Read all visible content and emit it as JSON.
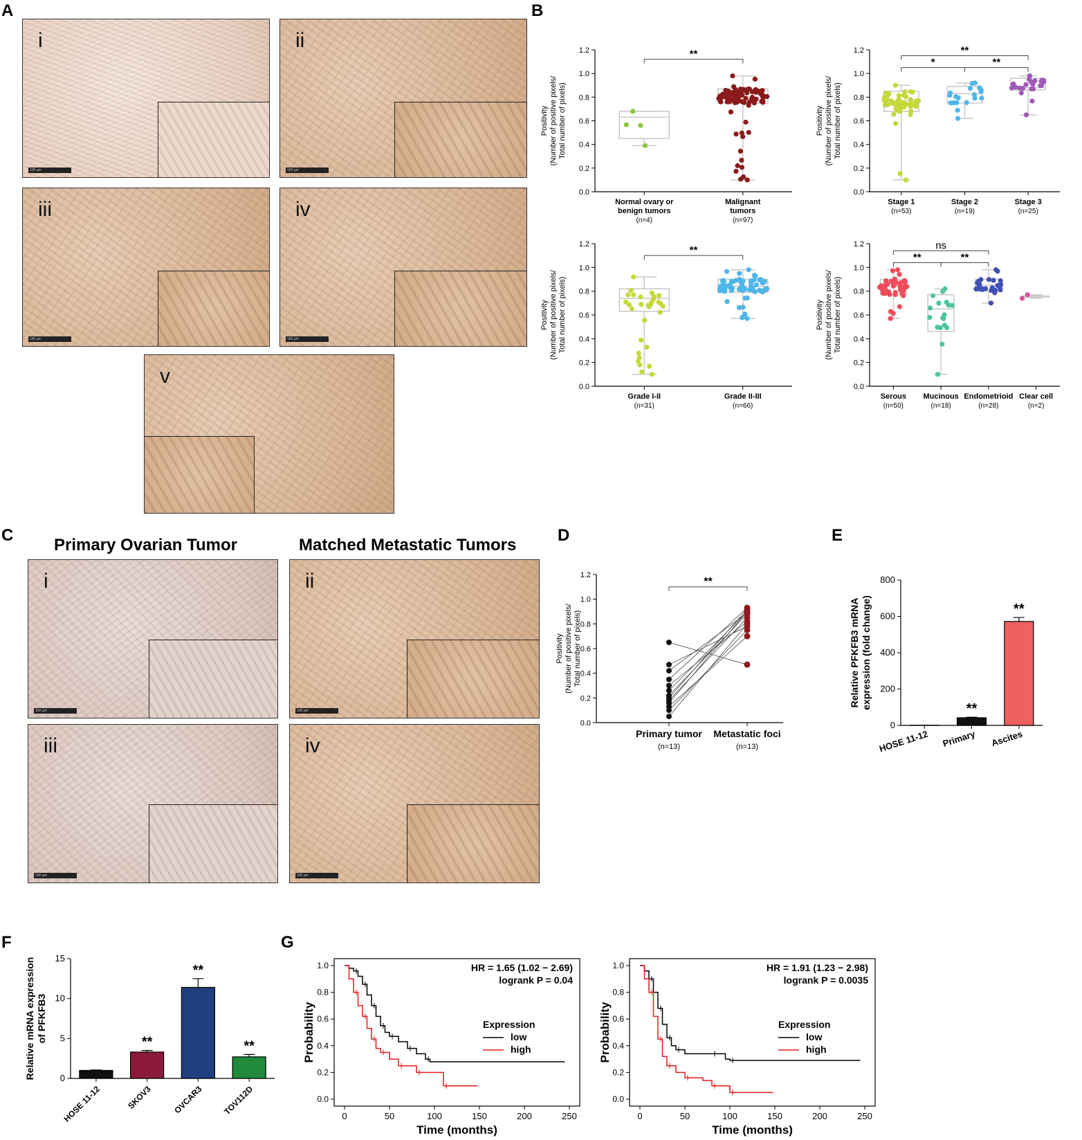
{
  "panels": {
    "A": {
      "letter": "A",
      "images": [
        {
          "roman": "i",
          "scale": "100 µm"
        },
        {
          "roman": "ii",
          "scale": "100 µm"
        },
        {
          "roman": "iii",
          "scale": "100 µm"
        },
        {
          "roman": "iv",
          "scale": "100 µm"
        },
        {
          "roman": "v",
          "scale": ""
        }
      ]
    },
    "B": {
      "letter": "B"
    },
    "C": {
      "letter": "C",
      "left_title": "Primary Ovarian Tumor",
      "right_title": "Matched Metastatic Tumors",
      "images": [
        {
          "roman": "i",
          "scale": "100 µm"
        },
        {
          "roman": "ii",
          "scale": "100 µm"
        },
        {
          "roman": "iii",
          "scale": "100 µm"
        },
        {
          "roman": "iv",
          "scale": "100 µm"
        }
      ]
    },
    "D": {
      "letter": "D"
    },
    "E": {
      "letter": "E"
    },
    "F": {
      "letter": "F"
    },
    "G": {
      "letter": "G"
    }
  },
  "colors": {
    "normal": "#8cc63f",
    "malignant": "#8b1a1a",
    "stage1": "#c5d83a",
    "stage2": "#4fb6e8",
    "stage3": "#a05ab8",
    "grade12": "#c5d83a",
    "grade23": "#4fb6e8",
    "serous": "#ee4c5a",
    "mucinous": "#4fc3a0",
    "endometrioid": "#3f51b5",
    "clearcell": "#d9509e",
    "primary_dot": "#111111",
    "meta_dot": "#8b1a1a",
    "ascites_bar": "#f06060",
    "skov3": "#8b1a3a",
    "ovcar3": "#1f3f7f",
    "tov112d": "#1f8a3a",
    "hose": "#111111",
    "km_low": "#000000",
    "km_high": "#e31a1c"
  },
  "chart_data": [
    {
      "id": "B1",
      "type": "scatter",
      "ylabel": "Positivity\n(Number of positive pixels/\nTotal number of pixels)",
      "ylim": [
        0,
        1.2
      ],
      "yticks": [
        "0.0",
        "0.2",
        "0.4",
        "0.6",
        "0.8",
        "1.0",
        "1.2"
      ],
      "groups": [
        {
          "label": "Normal ovary or\nbenign tumors",
          "n": "(n=4)",
          "color_key": "normal",
          "median": 0.63,
          "q1": 0.45,
          "q3": 0.68,
          "min": 0.39,
          "max": 0.68,
          "n_points": 4
        },
        {
          "label": "Malignant\ntumors",
          "n": "(n=97)",
          "color_key": "malignant",
          "median": 0.8,
          "q1": 0.75,
          "q3": 0.87,
          "min": 0.1,
          "max": 0.98,
          "n_points": 97
        }
      ],
      "significance": [
        {
          "from": 0,
          "to": 1,
          "label": "**",
          "y": 1.12
        }
      ]
    },
    {
      "id": "B2",
      "type": "scatter",
      "ylabel": "Positivity\n(Number of positive pixels/\nTotal number of pixels)",
      "ylim": [
        0,
        1.2
      ],
      "yticks": [
        "0.0",
        "0.2",
        "0.4",
        "0.6",
        "0.8",
        "1.0",
        "1.2"
      ],
      "groups": [
        {
          "label": "Stage 1",
          "n": "(n=53)",
          "color_key": "stage1",
          "median": 0.77,
          "q1": 0.68,
          "q3": 0.85,
          "min": 0.1,
          "max": 0.9,
          "n_points": 53
        },
        {
          "label": "Stage 2",
          "n": "(n=19)",
          "color_key": "stage2",
          "median": 0.83,
          "q1": 0.75,
          "q3": 0.89,
          "min": 0.62,
          "max": 0.92,
          "n_points": 19
        },
        {
          "label": "Stage 3",
          "n": "(n=25)",
          "color_key": "stage3",
          "median": 0.88,
          "q1": 0.86,
          "q3": 0.96,
          "min": 0.65,
          "max": 0.98,
          "n_points": 25
        }
      ],
      "significance": [
        {
          "from": 0,
          "to": 1,
          "label": "*",
          "y": 1.05
        },
        {
          "from": 1,
          "to": 2,
          "label": "**",
          "y": 1.05
        },
        {
          "from": 0,
          "to": 2,
          "label": "**",
          "y": 1.15
        }
      ]
    },
    {
      "id": "B3",
      "type": "scatter",
      "ylabel": "Positivity\n(Number of positive pixels/\nTotal number of pixels)",
      "ylim": [
        0,
        1.2
      ],
      "yticks": [
        "0.0",
        "0.2",
        "0.4",
        "0.6",
        "0.8",
        "1.0",
        "1.2"
      ],
      "groups": [
        {
          "label": "Grade I-II",
          "n": "(n=31)",
          "color_key": "grade12",
          "median": 0.74,
          "q1": 0.63,
          "q3": 0.82,
          "min": 0.1,
          "max": 0.92,
          "n_points": 31
        },
        {
          "label": "Grade II-III",
          "n": "(n=66)",
          "color_key": "grade23",
          "median": 0.84,
          "q1": 0.79,
          "q3": 0.9,
          "min": 0.57,
          "max": 0.98,
          "n_points": 66
        }
      ],
      "significance": [
        {
          "from": 0,
          "to": 1,
          "label": "**",
          "y": 1.1
        }
      ]
    },
    {
      "id": "B4",
      "type": "scatter",
      "ylabel": "Positivity\n(Number of positive pixels/\nTotal number of pixels)",
      "ylim": [
        0,
        1.2
      ],
      "yticks": [
        "0.0",
        "0.2",
        "0.4",
        "0.6",
        "0.8",
        "1.0",
        "1.2"
      ],
      "groups": [
        {
          "label": "Serous",
          "n": "(n=50)",
          "color_key": "serous",
          "median": 0.84,
          "q1": 0.77,
          "q3": 0.9,
          "min": 0.57,
          "max": 0.98,
          "n_points": 50
        },
        {
          "label": "Mucinous",
          "n": "(n=18)",
          "color_key": "mucinous",
          "median": 0.65,
          "q1": 0.46,
          "q3": 0.77,
          "min": 0.1,
          "max": 0.82,
          "n_points": 18
        },
        {
          "label": "Endometrioid",
          "n": "(n=28)",
          "color_key": "endometrioid",
          "median": 0.85,
          "q1": 0.8,
          "q3": 0.9,
          "min": 0.7,
          "max": 0.98,
          "n_points": 28
        },
        {
          "label": "Clear cell",
          "n": "(n=2)",
          "color_key": "clearcell",
          "median": 0.75,
          "q1": 0.75,
          "q3": 0.76,
          "min": 0.74,
          "max": 0.77,
          "n_points": 2
        }
      ],
      "significance": [
        {
          "from": 0,
          "to": 1,
          "label": "**",
          "y": 1.04
        },
        {
          "from": 1,
          "to": 2,
          "label": "**",
          "y": 1.04
        },
        {
          "from": 0,
          "to": 2,
          "label": "ns",
          "y": 1.14
        }
      ]
    },
    {
      "id": "D",
      "type": "line",
      "ylabel": "Positivity\n(Number of positive pixels/\nTotal number of pixels)",
      "ylim": [
        0,
        1.2
      ],
      "yticks": [
        "0.0",
        "0.2",
        "0.4",
        "0.6",
        "0.8",
        "1.0",
        "1.2"
      ],
      "categories": [
        "Primary tumor",
        "Metastatic foci"
      ],
      "n": [
        "(n=13)",
        "(n=13)"
      ],
      "pairs": [
        [
          0.05,
          0.8
        ],
        [
          0.1,
          0.75
        ],
        [
          0.13,
          0.7
        ],
        [
          0.16,
          0.9
        ],
        [
          0.18,
          0.85
        ],
        [
          0.2,
          0.92
        ],
        [
          0.22,
          0.88
        ],
        [
          0.26,
          0.9
        ],
        [
          0.3,
          0.82
        ],
        [
          0.35,
          0.93
        ],
        [
          0.42,
          0.89
        ],
        [
          0.47,
          0.78
        ],
        [
          0.65,
          0.47
        ]
      ],
      "significance": [
        {
          "label": "**",
          "y": 1.1
        }
      ]
    },
    {
      "id": "E",
      "type": "bar",
      "ylabel": "Relative PFKFB3 mRNA\nexpression (fold change)",
      "ylim": [
        0,
        800
      ],
      "yticks": [
        "0",
        "200",
        "400",
        "600",
        "800"
      ],
      "categories": [
        "HOSE 11-12",
        "Primary",
        "Ascites"
      ],
      "values": [
        1,
        42,
        572
      ],
      "errors": [
        0,
        3,
        22
      ],
      "color_keys": [
        "hose",
        "hose",
        "ascites_bar"
      ],
      "significance": [
        "",
        "**",
        "**"
      ]
    },
    {
      "id": "F",
      "type": "bar",
      "ylabel": "Relative mRNA expression\nof PFKFB3",
      "ylim": [
        0,
        15
      ],
      "yticks": [
        "0",
        "5",
        "10",
        "15"
      ],
      "categories": [
        "HOSE 11-12",
        "SKOV3",
        "OVCAR3",
        "TOV112D"
      ],
      "values": [
        1,
        3.3,
        11.4,
        2.7
      ],
      "errors": [
        0.05,
        0.2,
        1.1,
        0.3
      ],
      "color_keys": [
        "hose",
        "skov3",
        "ovcar3",
        "tov112d"
      ],
      "significance": [
        "",
        "**",
        "**",
        "**"
      ]
    },
    {
      "id": "G1",
      "type": "line",
      "xlabel": "Time (months)",
      "ylabel": "Probability",
      "xlim": [
        0,
        250
      ],
      "ylim": [
        0,
        1
      ],
      "xticks": [
        "0",
        "50",
        "100",
        "150",
        "200",
        "250"
      ],
      "yticks": [
        "0.0",
        "0.2",
        "0.4",
        "0.6",
        "0.8",
        "1.0"
      ],
      "annotation": [
        "HR = 1.65 (1.02 − 2.69)",
        "logrank P = 0.04"
      ],
      "legend_title": "Expression",
      "series": [
        {
          "name": "low",
          "color_key": "km_low",
          "points": [
            [
              0,
              1
            ],
            [
              5,
              0.98
            ],
            [
              10,
              0.96
            ],
            [
              15,
              0.92
            ],
            [
              20,
              0.86
            ],
            [
              25,
              0.78
            ],
            [
              30,
              0.7
            ],
            [
              35,
              0.62
            ],
            [
              40,
              0.55
            ],
            [
              45,
              0.5
            ],
            [
              50,
              0.47
            ],
            [
              60,
              0.43
            ],
            [
              70,
              0.38
            ],
            [
              80,
              0.34
            ],
            [
              90,
              0.3
            ],
            [
              95,
              0.28
            ],
            [
              245,
              0.28
            ]
          ]
        },
        {
          "name": "high",
          "color_key": "km_high",
          "points": [
            [
              0,
              1
            ],
            [
              5,
              0.9
            ],
            [
              10,
              0.8
            ],
            [
              15,
              0.7
            ],
            [
              20,
              0.62
            ],
            [
              25,
              0.53
            ],
            [
              30,
              0.45
            ],
            [
              35,
              0.38
            ],
            [
              40,
              0.35
            ],
            [
              50,
              0.3
            ],
            [
              60,
              0.25
            ],
            [
              70,
              0.25
            ],
            [
              80,
              0.2
            ],
            [
              110,
              0.2
            ],
            [
              110,
              0.1
            ],
            [
              148,
              0.1
            ]
          ]
        }
      ]
    },
    {
      "id": "G2",
      "type": "line",
      "xlabel": "Time (months)",
      "ylabel": "Probability",
      "xlim": [
        0,
        250
      ],
      "ylim": [
        0,
        1
      ],
      "xticks": [
        "0",
        "50",
        "100",
        "150",
        "200",
        "250"
      ],
      "yticks": [
        "0.0",
        "0.2",
        "0.4",
        "0.6",
        "0.8",
        "1.0"
      ],
      "annotation": [
        "HR = 1.91 (1.23 − 2.98)",
        "logrank P = 0.0035"
      ],
      "legend_title": "Expression",
      "series": [
        {
          "name": "low",
          "color_key": "km_low",
          "points": [
            [
              0,
              1
            ],
            [
              5,
              0.96
            ],
            [
              10,
              0.9
            ],
            [
              15,
              0.8
            ],
            [
              20,
              0.68
            ],
            [
              25,
              0.56
            ],
            [
              30,
              0.46
            ],
            [
              35,
              0.4
            ],
            [
              40,
              0.37
            ],
            [
              50,
              0.34
            ],
            [
              80,
              0.34
            ],
            [
              95,
              0.3
            ],
            [
              100,
              0.29
            ],
            [
              245,
              0.29
            ]
          ]
        },
        {
          "name": "high",
          "color_key": "km_high",
          "points": [
            [
              0,
              1
            ],
            [
              5,
              0.9
            ],
            [
              10,
              0.8
            ],
            [
              15,
              0.62
            ],
            [
              20,
              0.45
            ],
            [
              25,
              0.32
            ],
            [
              30,
              0.25
            ],
            [
              40,
              0.2
            ],
            [
              50,
              0.16
            ],
            [
              70,
              0.14
            ],
            [
              80,
              0.1
            ],
            [
              95,
              0.1
            ],
            [
              100,
              0.05
            ],
            [
              148,
              0.05
            ]
          ]
        }
      ]
    }
  ]
}
